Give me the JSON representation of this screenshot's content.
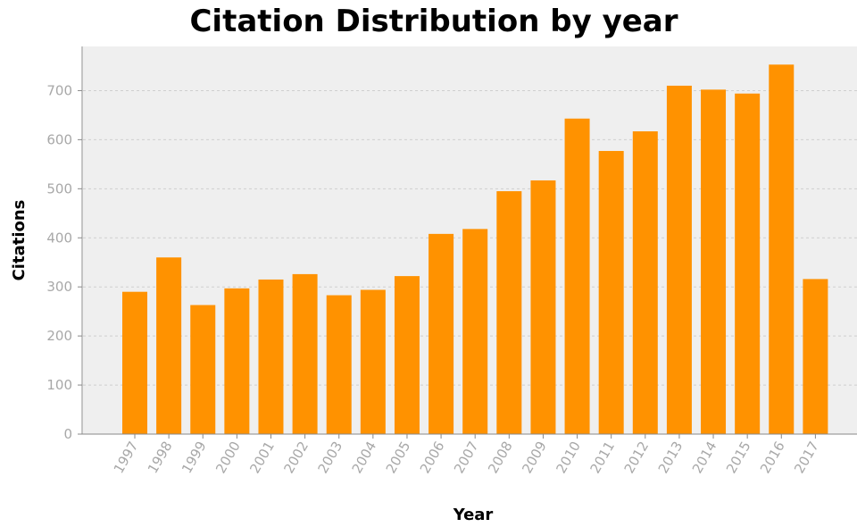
{
  "chart_data": {
    "type": "bar",
    "title": "Citation Distribution by year",
    "xlabel": "Year",
    "ylabel": "Citations",
    "categories": [
      "1997",
      "1998",
      "1999",
      "2000",
      "2001",
      "2002",
      "2003",
      "2004",
      "2005",
      "2006",
      "2007",
      "2008",
      "2009",
      "2010",
      "2011",
      "2012",
      "2013",
      "2014",
      "2015",
      "2016",
      "2017"
    ],
    "values": [
      290,
      360,
      263,
      297,
      315,
      326,
      283,
      294,
      322,
      408,
      418,
      495,
      517,
      643,
      577,
      617,
      710,
      702,
      694,
      753,
      316
    ],
    "ylim": [
      0,
      790
    ],
    "yticks": [
      0,
      100,
      200,
      300,
      400,
      500,
      600,
      700
    ],
    "grid": true,
    "legend": "none",
    "bar_color": "#ff9200",
    "plot_background": "#efefef"
  }
}
